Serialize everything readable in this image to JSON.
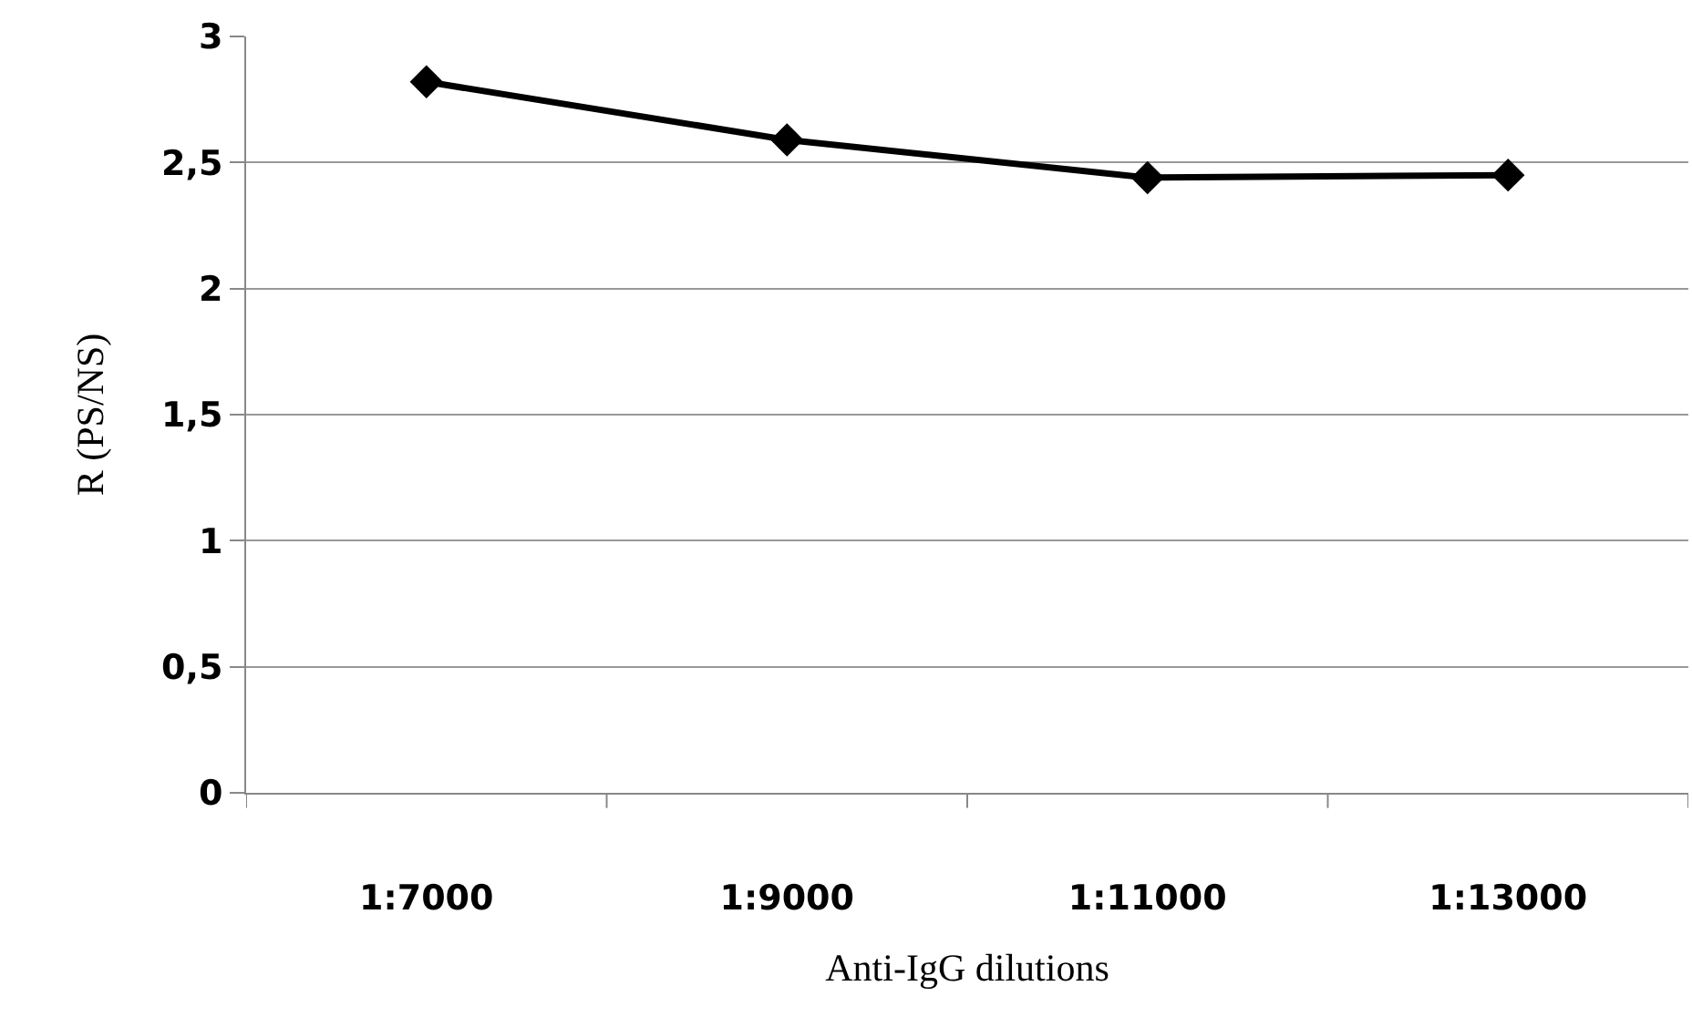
{
  "chart_data": {
    "type": "line",
    "xlabel": "Anti-IgG dilutions",
    "ylabel": "R (PS/NS)",
    "categories": [
      "1:7000",
      "1:9000",
      "1:11000",
      "1:13000"
    ],
    "series": [
      {
        "color": "#000000",
        "values": [
          2.82,
          2.59,
          2.44,
          2.45
        ]
      }
    ],
    "ylim": [
      0,
      3
    ],
    "yticks": [
      0,
      {
        "value": 0.5,
        "label": "0,5"
      },
      1,
      {
        "value": 1.5,
        "label": "1,5"
      },
      2,
      {
        "value": 2.5,
        "label": "2,5"
      },
      3
    ],
    "grid": "y",
    "marker": "diamond",
    "line_style": "solid"
  }
}
